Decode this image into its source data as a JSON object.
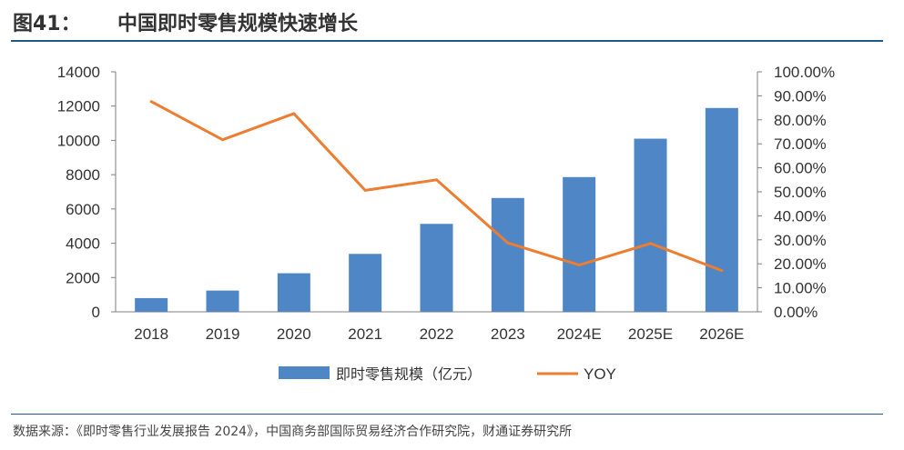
{
  "figure": {
    "number": "图41：",
    "title": "中国即时零售规模快速增长",
    "source": "数据来源：《即时零售行业发展报告 2024》，中国商务部国际贸易经济合作研究院，财通证券研究所"
  },
  "colors": {
    "bar": "#4f86c6",
    "line": "#ed7d31",
    "rule": "#1f5a8f",
    "axis": "#7f7f7f"
  },
  "chart_data": {
    "type": "bar",
    "title": "中国即时零售规模快速增长",
    "categories": [
      "2018",
      "2019",
      "2020",
      "2021",
      "2022",
      "2023",
      "2024E",
      "2025E",
      "2026E"
    ],
    "series": [
      {
        "name": "即时零售规模（亿元）",
        "type": "bar",
        "axis": "left",
        "values": [
          800,
          1240,
          2250,
          3380,
          5130,
          6640,
          7860,
          10100,
          11890
        ]
      },
      {
        "name": "YOY",
        "type": "line",
        "axis": "right",
        "values": [
          0.876,
          0.717,
          0.826,
          0.506,
          0.55,
          0.287,
          0.195,
          0.285,
          0.172
        ]
      }
    ],
    "y_left": {
      "min": 0,
      "max": 14000,
      "ticks": [
        "0",
        "2000",
        "4000",
        "6000",
        "8000",
        "10000",
        "12000",
        "14000"
      ]
    },
    "y_right": {
      "min": 0,
      "max": 1.0,
      "ticks": [
        "0.00%",
        "10.00%",
        "20.00%",
        "30.00%",
        "40.00%",
        "50.00%",
        "60.00%",
        "70.00%",
        "80.00%",
        "90.00%",
        "100.00%"
      ]
    },
    "legend": {
      "placement": "bottom",
      "bar_label": "即时零售规模（亿元）",
      "line_label": "YOY"
    },
    "xlabel": "",
    "ylabel": "",
    "grid": false
  }
}
